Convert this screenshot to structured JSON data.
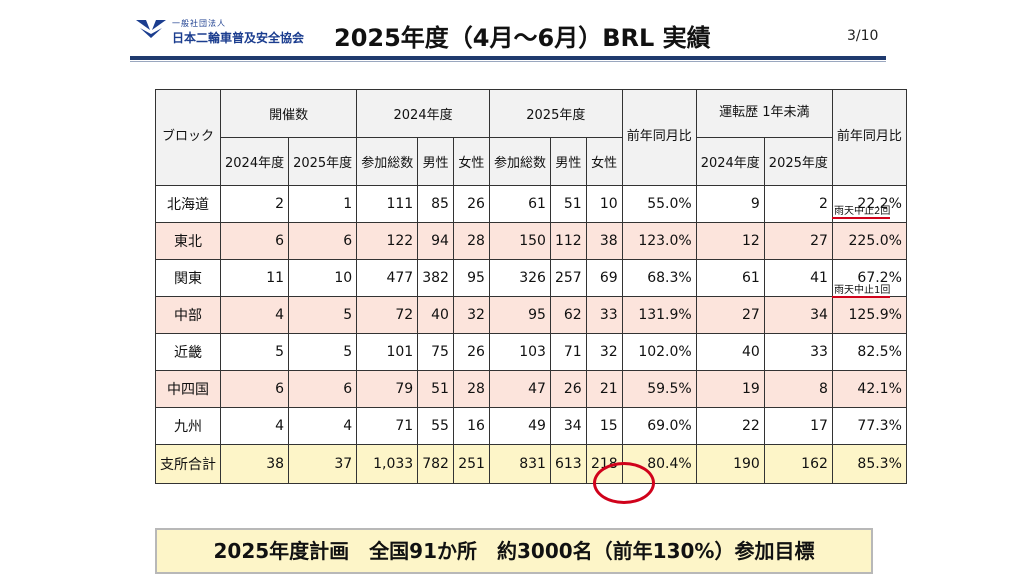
{
  "header": {
    "org_small": "一般社団法人",
    "org_name": "日本二輪車普及安全協会",
    "title": "2025年度（4月～6月）BRL 実績",
    "page": "3/10"
  },
  "table": {
    "headers": {
      "block": "ブロック",
      "kaisai": "開催数",
      "y2024": "2024年度",
      "y2025": "2025年度",
      "yoy": "前年同月比",
      "novice": "運転歴 1年未満",
      "yoy2": "前年同月比",
      "sub_2024": "2024年度",
      "sub_2025": "2025年度",
      "total": "参加総数",
      "male": "男性",
      "female": "女性",
      "novice_2024": "2024年度",
      "novice_2025": "2025年度"
    },
    "rows": [
      {
        "name": "北海道",
        "k24": "2",
        "k25": "1",
        "t24": "111",
        "m24": "85",
        "f24": "26",
        "t25": "61",
        "m25": "51",
        "f25": "10",
        "yoy": "55.0%",
        "n24": "9",
        "n25": "2",
        "nyoy": "22.2%"
      },
      {
        "name": "東北",
        "k24": "6",
        "k25": "6",
        "t24": "122",
        "m24": "94",
        "f24": "28",
        "t25": "150",
        "m25": "112",
        "f25": "38",
        "yoy": "123.0%",
        "n24": "12",
        "n25": "27",
        "nyoy": "225.0%"
      },
      {
        "name": "関東",
        "k24": "11",
        "k25": "10",
        "t24": "477",
        "m24": "382",
        "f24": "95",
        "t25": "326",
        "m25": "257",
        "f25": "69",
        "yoy": "68.3%",
        "n24": "61",
        "n25": "41",
        "nyoy": "67.2%"
      },
      {
        "name": "中部",
        "k24": "4",
        "k25": "5",
        "t24": "72",
        "m24": "40",
        "f24": "32",
        "t25": "95",
        "m25": "62",
        "f25": "33",
        "yoy": "131.9%",
        "n24": "27",
        "n25": "34",
        "nyoy": "125.9%"
      },
      {
        "name": "近畿",
        "k24": "5",
        "k25": "5",
        "t24": "101",
        "m24": "75",
        "f24": "26",
        "t25": "103",
        "m25": "71",
        "f25": "32",
        "yoy": "102.0%",
        "n24": "40",
        "n25": "33",
        "nyoy": "82.5%"
      },
      {
        "name": "中四国",
        "k24": "6",
        "k25": "6",
        "t24": "79",
        "m24": "51",
        "f24": "28",
        "t25": "47",
        "m25": "26",
        "f25": "21",
        "yoy": "59.5%",
        "n24": "19",
        "n25": "8",
        "nyoy": "42.1%"
      },
      {
        "name": "九州",
        "k24": "4",
        "k25": "4",
        "t24": "71",
        "m24": "55",
        "f24": "16",
        "t25": "49",
        "m25": "34",
        "f25": "15",
        "yoy": "69.0%",
        "n24": "22",
        "n25": "17",
        "nyoy": "77.3%"
      }
    ],
    "total": {
      "name": "支所合計",
      "k24": "38",
      "k25": "37",
      "t24": "1,033",
      "m24": "782",
      "f24": "251",
      "t25": "831",
      "m25": "613",
      "f25": "218",
      "yoy": "80.4%",
      "n24": "190",
      "n25": "162",
      "nyoy": "85.3%"
    }
  },
  "notes": {
    "hokkaido": "雨天中止2回",
    "kanto": "雨天中止1回"
  },
  "plan": "2025年度計画　全国91か所　約3000名（前年130%）参加目標",
  "colors": {
    "accent_red": "#d0021b",
    "pink_row": "#fce4dc",
    "total_row": "#fdf5c8",
    "title_rule": "#1f3a6e"
  }
}
